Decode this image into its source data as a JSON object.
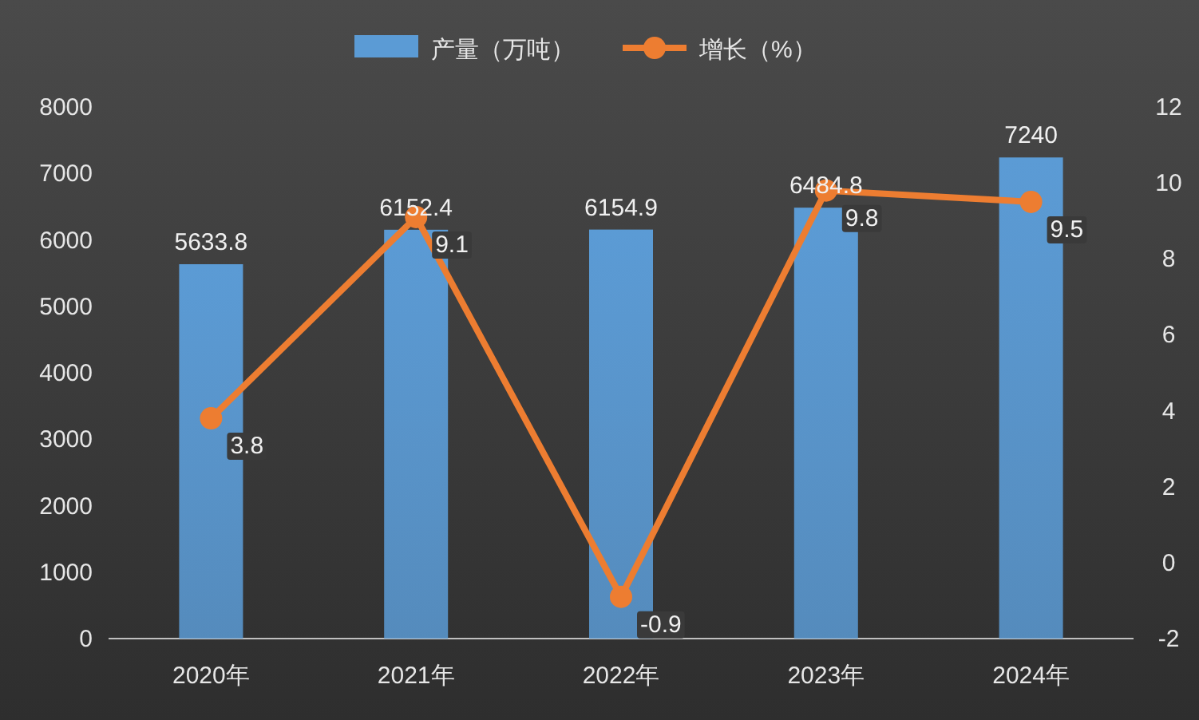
{
  "chart_data": {
    "type": "bar",
    "categories": [
      "2020年",
      "2021年",
      "2022年",
      "2023年",
      "2024年"
    ],
    "series": [
      {
        "name": "产量（万吨）",
        "color": "#5b9bd5",
        "values": [
          5633.8,
          6152.4,
          6154.9,
          6484.8,
          7240
        ]
      },
      {
        "name": "增长（%）",
        "color": "#ed7d31",
        "type": "line",
        "axis": "y2",
        "marker": "circle",
        "values": [
          3.8,
          9.1,
          -0.9,
          9.8,
          9.5
        ]
      }
    ],
    "ylim": [
      0,
      8000
    ],
    "yticks": [
      0,
      1000,
      2000,
      3000,
      4000,
      5000,
      6000,
      7000,
      8000
    ],
    "y2lim": [
      -2,
      12
    ],
    "y2ticks": [
      -2,
      0,
      2,
      4,
      6,
      8,
      10,
      12
    ],
    "legend": "top",
    "data_labels": true
  }
}
